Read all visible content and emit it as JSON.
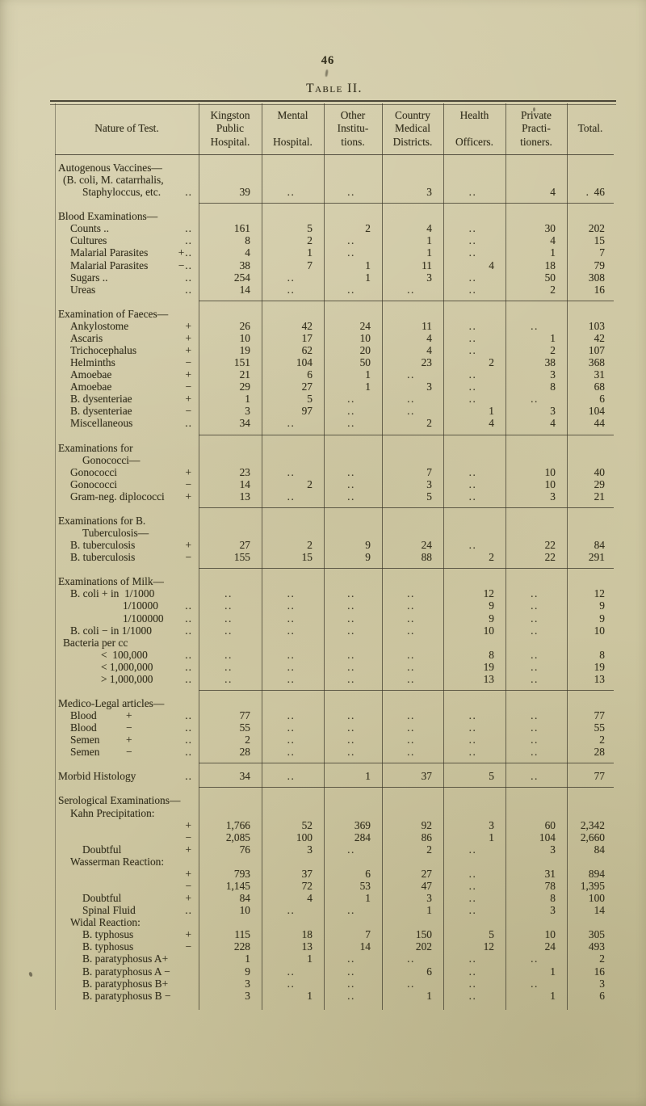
{
  "page": {
    "number": "46",
    "title": "Table II."
  },
  "table": {
    "columns": [
      {
        "id": "nature",
        "label": "Nature of Test."
      },
      {
        "id": "kingston",
        "label": "Kingston\nPublic\nHospital."
      },
      {
        "id": "mental",
        "label": "Mental\n\nHospital."
      },
      {
        "id": "other",
        "label": "Other\nInstitu-\ntions."
      },
      {
        "id": "country",
        "label": "Country\nMedical\nDistricts."
      },
      {
        "id": "health",
        "label": "Health\n\nOfficers."
      },
      {
        "id": "private",
        "label": "Private\nPracti-\ntioners."
      },
      {
        "id": "total",
        "label": "Total."
      }
    ],
    "sections": [
      {
        "name": "autogenous-vaccines",
        "rows": [
          {
            "label": "Autogenous Vaccines—",
            "indent": 0
          },
          {
            "label": "(B. coli, M. catarrhalis,",
            "indent": 1
          },
          {
            "label": "Staphyloccus, etc.",
            "indent": 3,
            "sign": "..",
            "cells": [
              "39",
              "..",
              "..",
              "3",
              "..",
              "4",
              ".  46"
            ]
          }
        ]
      },
      {
        "name": "blood-examinations",
        "rows": [
          {
            "label": "Blood Examinations—",
            "indent": 0
          },
          {
            "label": "Counts ..",
            "indent": 2,
            "sign": "..",
            "cells": [
              "161",
              "5",
              "2",
              "4",
              "..",
              "30",
              "202"
            ]
          },
          {
            "label": "Cultures",
            "indent": 2,
            "sign": "..",
            "cells": [
              "8",
              "2",
              "..",
              "1",
              "..",
              "4",
              "15"
            ]
          },
          {
            "label": "Malarial Parasites",
            "indent": 2,
            "sign": "+..",
            "cells": [
              "4",
              "1",
              "..",
              "1",
              "..",
              "1",
              "7"
            ]
          },
          {
            "label": "Malarial Parasites",
            "indent": 2,
            "sign": "−..",
            "cells": [
              "38",
              "7",
              "1",
              "11",
              "4",
              "18",
              "79"
            ]
          },
          {
            "label": "Sugars ..",
            "indent": 2,
            "sign": "..",
            "cells": [
              "254",
              "..",
              "1",
              "3",
              "..",
              "50",
              "308"
            ]
          },
          {
            "label": "Ureas",
            "indent": 2,
            "sign": "..",
            "cells": [
              "14",
              "..",
              "..",
              "..",
              "..",
              "2",
              "16"
            ]
          }
        ]
      },
      {
        "name": "examination-of-faeces",
        "rows": [
          {
            "label": "Examination of Faeces—",
            "indent": 0
          },
          {
            "label": "Ankylostome",
            "indent": 2,
            "sign": "+",
            "cells": [
              "26",
              "42",
              "24",
              "11",
              "..",
              "..",
              "103"
            ]
          },
          {
            "label": "Ascaris",
            "indent": 2,
            "sign": "+",
            "cells": [
              "10",
              "17",
              "10",
              "4",
              "..",
              "1",
              "42"
            ]
          },
          {
            "label": "Trichocephalus",
            "indent": 2,
            "sign": "+",
            "cells": [
              "19",
              "62",
              "20",
              "4",
              "..",
              "2",
              "107"
            ]
          },
          {
            "label": "Helminths",
            "indent": 2,
            "sign": "−",
            "cells": [
              "151",
              "104",
              "50",
              "23",
              "2",
              "38",
              "368"
            ]
          },
          {
            "label": "Amoebae",
            "indent": 2,
            "sign": "+",
            "cells": [
              "21",
              "6",
              "1",
              "..",
              "..",
              "3",
              "31"
            ]
          },
          {
            "label": "Amoebae",
            "indent": 2,
            "sign": "−",
            "cells": [
              "29",
              "27",
              "1",
              "3",
              "..",
              "8",
              "68"
            ]
          },
          {
            "label": "B. dysenteriae",
            "indent": 2,
            "sign": "+",
            "cells": [
              "1",
              "5",
              "..",
              "..",
              "..",
              "..",
              "6"
            ]
          },
          {
            "label": "B. dysenteriae",
            "indent": 2,
            "sign": "−",
            "cells": [
              "3",
              "97",
              "..",
              "..",
              "1",
              "3",
              "104"
            ]
          },
          {
            "label": "Miscellaneous",
            "indent": 2,
            "sign": "..",
            "cells": [
              "34",
              "..",
              "..",
              "2",
              "4",
              "4",
              "44"
            ]
          }
        ]
      },
      {
        "name": "examinations-for-gonococci",
        "rows": [
          {
            "label": "Examinations for",
            "indent": 0
          },
          {
            "label": "Gonococci—",
            "indent": 3
          },
          {
            "label": "Gonococci",
            "indent": 2,
            "sign": "+",
            "cells": [
              "23",
              "..",
              "..",
              "7",
              "..",
              "10",
              "40"
            ]
          },
          {
            "label": "Gonococci",
            "indent": 2,
            "sign": "−",
            "cells": [
              "14",
              "2",
              "..",
              "3",
              "..",
              "10",
              "29"
            ]
          },
          {
            "label": "Gram-neg. diplococci",
            "indent": 2,
            "sign": "+",
            "cells": [
              "13",
              "..",
              "..",
              "5",
              "..",
              "3",
              "21"
            ]
          }
        ]
      },
      {
        "name": "examinations-for-b-tuberculosis",
        "rows": [
          {
            "label": "Examinations for B.",
            "indent": 0
          },
          {
            "label": "Tuberculosis—",
            "indent": 3
          },
          {
            "label": "B. tuberculosis",
            "indent": 2,
            "sign": "+",
            "cells": [
              "27",
              "2",
              "9",
              "24",
              "..",
              "22",
              "84"
            ]
          },
          {
            "label": "B. tuberculosis",
            "indent": 2,
            "sign": "−",
            "cells": [
              "155",
              "15",
              "9",
              "88",
              "2",
              "22",
              "291"
            ]
          }
        ]
      },
      {
        "name": "examinations-of-milk",
        "rows": [
          {
            "label": "Examinations of Milk—",
            "indent": 0
          },
          {
            "label": "B. coli + in  1/1000",
            "indent": 2,
            "cells": [
              "..",
              "..",
              "..",
              "..",
              "12",
              "..",
              "12"
            ]
          },
          {
            "label": "1/10000",
            "indent": 5,
            "sign": "..",
            "cells": [
              "..",
              "..",
              "..",
              "..",
              "9",
              "..",
              "9"
            ]
          },
          {
            "label": "1/100000",
            "indent": 5,
            "sign": "..",
            "cells": [
              "..",
              "..",
              "..",
              "..",
              "9",
              "..",
              "9"
            ]
          },
          {
            "label": "B. coli − in 1/1000",
            "indent": 2,
            "sign": "..",
            "cells": [
              "..",
              "..",
              "..",
              "..",
              "10",
              "..",
              "10"
            ]
          },
          {
            "label": "Bacteria per cc",
            "indent": 1
          },
          {
            "label": "<  100,000",
            "indent": 4,
            "sign": "..",
            "cells": [
              "..",
              "..",
              "..",
              "..",
              "8",
              "..",
              "8"
            ]
          },
          {
            "label": "< 1,000,000",
            "indent": 4,
            "sign": "..",
            "cells": [
              "..",
              "..",
              "..",
              "..",
              "19",
              "..",
              "19"
            ]
          },
          {
            "label": "> 1,000,000",
            "indent": 4,
            "sign": "..",
            "cells": [
              "..",
              "..",
              "..",
              "..",
              "13",
              "..",
              "13"
            ]
          }
        ]
      },
      {
        "name": "medico-legal-articles",
        "rows": [
          {
            "label": "Medico-Legal articles—",
            "indent": 0
          },
          {
            "label": "Blood",
            "indent": 2,
            "mid": "+",
            "sign": "..",
            "cells": [
              "77",
              "..",
              "..",
              "..",
              "..",
              "..",
              "77"
            ]
          },
          {
            "label": "Blood",
            "indent": 2,
            "mid": "−",
            "sign": "..",
            "cells": [
              "55",
              "..",
              "..",
              "..",
              "..",
              "..",
              "55"
            ]
          },
          {
            "label": "Semen",
            "indent": 2,
            "mid": "+",
            "sign": "..",
            "cells": [
              "2",
              "..",
              "..",
              "..",
              "..",
              "..",
              "2"
            ]
          },
          {
            "label": "Semen",
            "indent": 2,
            "mid": "−",
            "sign": "..",
            "cells": [
              "28",
              "..",
              "..",
              "..",
              "..",
              "..",
              "28"
            ]
          }
        ]
      },
      {
        "name": "morbid-histology",
        "rows": [
          {
            "label": "Morbid Histology",
            "indent": 0,
            "sign": "..",
            "cells": [
              "34",
              "..",
              "1",
              "37",
              "5",
              "..",
              "77"
            ]
          }
        ]
      },
      {
        "name": "serological-examinations",
        "rows": [
          {
            "label": "Serological Examinations—",
            "indent": 0
          },
          {
            "label": "Kahn Precipitation:",
            "indent": 2
          },
          {
            "label": "",
            "indent": 2,
            "sign": "+",
            "cells": [
              "1,766",
              "52",
              "369",
              "92",
              "3",
              "60",
              "2,342"
            ]
          },
          {
            "label": "",
            "indent": 2,
            "sign": "−",
            "cells": [
              "2,085",
              "100",
              "284",
              "86",
              "1",
              "104",
              "2,660"
            ]
          },
          {
            "label": "Doubtful",
            "indent": 3,
            "sign": "+",
            "cells": [
              "76",
              "3",
              "..",
              "2",
              "..",
              "3",
              "84"
            ]
          },
          {
            "label": "Wasserman Reaction:",
            "indent": 2
          },
          {
            "label": "",
            "indent": 2,
            "sign": "+",
            "cells": [
              "793",
              "37",
              "6",
              "27",
              "..",
              "31",
              "894"
            ]
          },
          {
            "label": "",
            "indent": 2,
            "sign": "−",
            "cells": [
              "1,145",
              "72",
              "53",
              "47",
              "..",
              "78",
              "1,395"
            ]
          },
          {
            "label": "Doubtful",
            "indent": 3,
            "sign": "+",
            "cells": [
              "84",
              "4",
              "1",
              "3",
              "..",
              "8",
              "100"
            ]
          },
          {
            "label": "Spinal Fluid",
            "indent": 3,
            "sign": "..",
            "cells": [
              "10",
              "..",
              "..",
              "1",
              "..",
              "3",
              "14"
            ]
          },
          {
            "label": "Widal Reaction:",
            "indent": 2
          },
          {
            "label": "B. typhosus",
            "indent": 3,
            "sign": "+",
            "cells": [
              "115",
              "18",
              "7",
              "150",
              "5",
              "10",
              "305"
            ]
          },
          {
            "label": "B. typhosus",
            "indent": 3,
            "sign": "−",
            "cells": [
              "228",
              "13",
              "14",
              "202",
              "12",
              "24",
              "493"
            ]
          },
          {
            "label": "B. paratyphosus A+",
            "indent": 3,
            "cells": [
              "1",
              "1",
              "..",
              "..",
              "..",
              "..",
              "2"
            ]
          },
          {
            "label": "B. paratyphosus A −",
            "indent": 3,
            "cells": [
              "9",
              "..",
              "..",
              "6",
              "..",
              "1",
              "16"
            ]
          },
          {
            "label": "B. paratyphosus B+",
            "indent": 3,
            "cells": [
              "3",
              "..",
              "..",
              "..",
              "..",
              "..",
              "3"
            ]
          },
          {
            "label": "B. paratyphosus B −",
            "indent": 3,
            "cells": [
              "3",
              "1",
              "..",
              "1",
              "..",
              "1",
              "6"
            ]
          }
        ]
      }
    ]
  }
}
